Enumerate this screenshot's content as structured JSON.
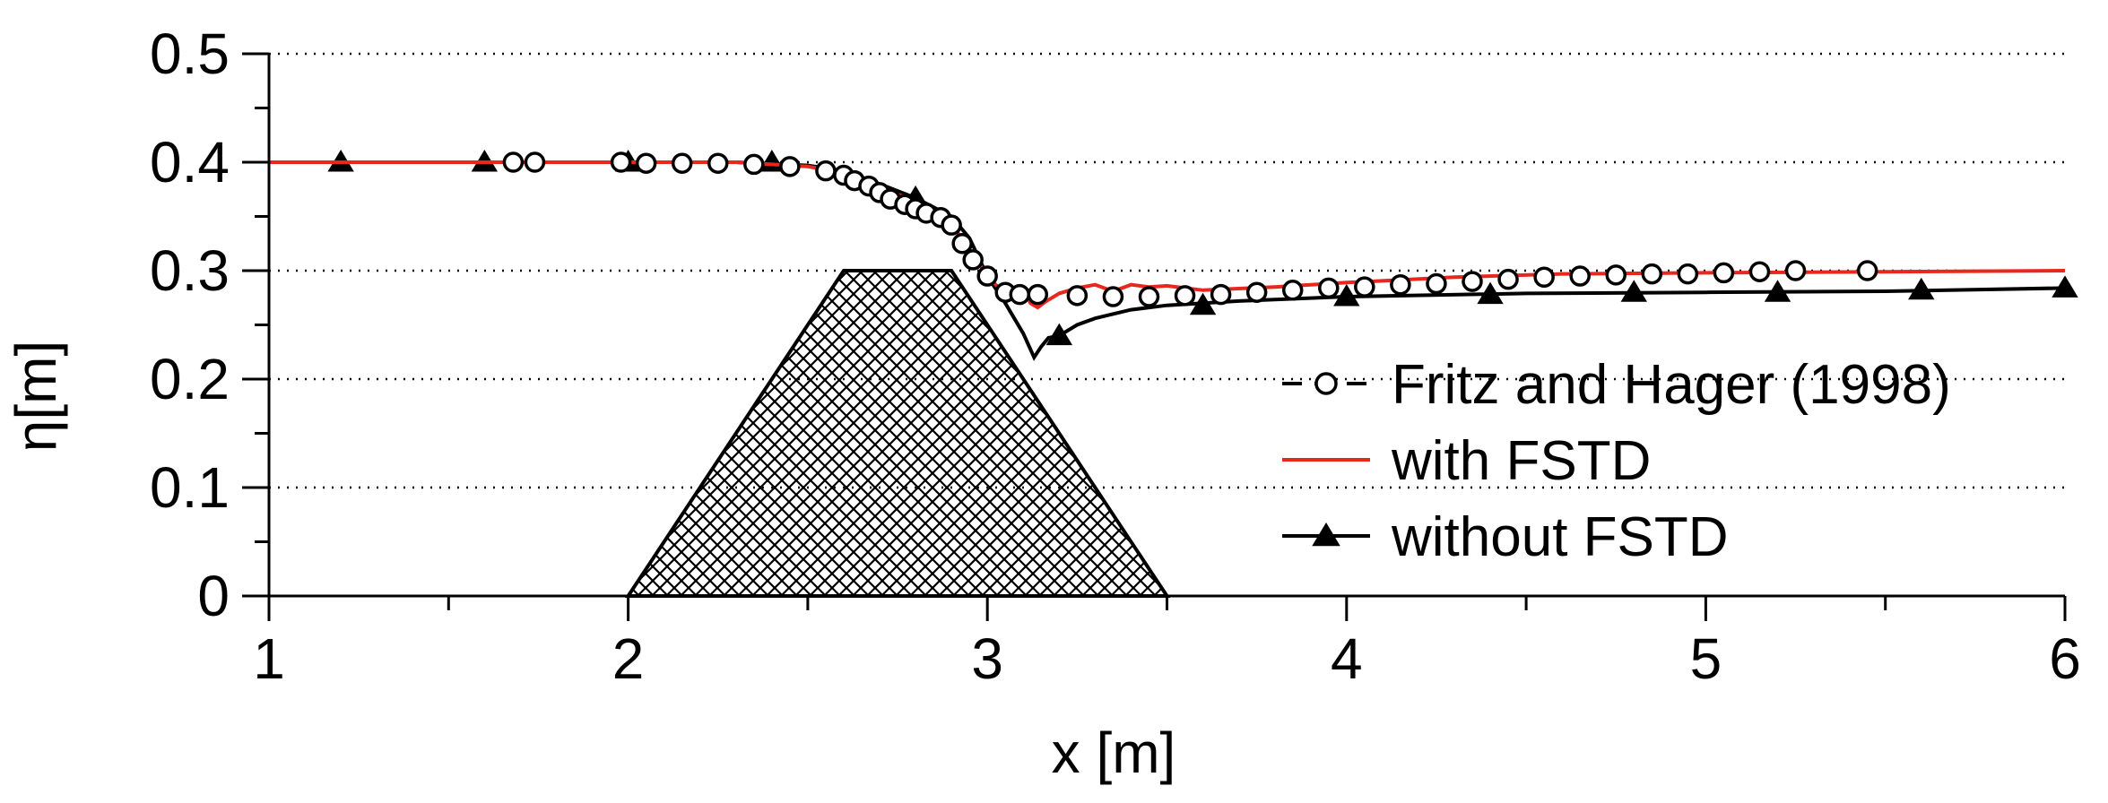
{
  "chart_data": {
    "type": "line",
    "xlabel": "x [m]",
    "ylabel": "η[m]",
    "xlim": [
      1,
      6
    ],
    "ylim": [
      0,
      0.5
    ],
    "x_ticks": [
      1,
      2,
      3,
      4,
      5,
      6
    ],
    "y_ticks": [
      0,
      0.1,
      0.2,
      0.3,
      0.4,
      0.5
    ],
    "x_tick_labels": [
      "1",
      "2",
      "3",
      "4",
      "5",
      "6"
    ],
    "y_tick_labels": [
      "0",
      "0.1",
      "0.2",
      "0.3",
      "0.4",
      "0.5"
    ],
    "grid": "horizontal dotted",
    "legend_position": "right",
    "obstacle": {
      "shape": "trapezoid",
      "fill": "crosshatch",
      "points": [
        [
          2.0,
          0.0
        ],
        [
          2.6,
          0.3
        ],
        [
          2.9,
          0.3
        ],
        [
          3.5,
          0.0
        ]
      ]
    },
    "series": [
      {
        "name": "Fritz and Hager (1998)",
        "style": "open-circle-markers",
        "color": "#000000",
        "x": [
          1.68,
          1.74,
          1.98,
          2.05,
          2.15,
          2.25,
          2.35,
          2.45,
          2.55,
          2.6,
          2.63,
          2.67,
          2.7,
          2.73,
          2.77,
          2.8,
          2.83,
          2.87,
          2.9,
          2.93,
          2.96,
          3.0,
          3.05,
          3.09,
          3.14,
          3.25,
          3.35,
          3.45,
          3.55,
          3.65,
          3.75,
          3.85,
          3.95,
          4.05,
          4.15,
          4.25,
          4.35,
          4.45,
          4.55,
          4.65,
          4.75,
          4.85,
          4.95,
          5.05,
          5.15,
          5.25,
          5.45
        ],
        "values": [
          0.4,
          0.4,
          0.4,
          0.399,
          0.399,
          0.399,
          0.398,
          0.396,
          0.392,
          0.388,
          0.383,
          0.378,
          0.372,
          0.366,
          0.361,
          0.357,
          0.353,
          0.349,
          0.342,
          0.325,
          0.31,
          0.295,
          0.28,
          0.278,
          0.278,
          0.277,
          0.276,
          0.276,
          0.277,
          0.278,
          0.28,
          0.282,
          0.284,
          0.285,
          0.287,
          0.288,
          0.29,
          0.292,
          0.294,
          0.295,
          0.296,
          0.297,
          0.297,
          0.298,
          0.299,
          0.3,
          0.3
        ]
      },
      {
        "name": "with FSTD",
        "style": "line",
        "color": "#e8281e",
        "x": [
          1.0,
          2.3,
          2.5,
          2.6,
          2.7,
          2.8,
          2.85,
          2.9,
          2.95,
          3.0,
          3.05,
          3.08,
          3.1,
          3.12,
          3.14,
          3.16,
          3.2,
          3.25,
          3.3,
          3.35,
          3.4,
          3.45,
          3.5,
          3.6,
          3.8,
          4.0,
          4.3,
          4.6,
          5.0,
          5.5,
          6.0
        ],
        "values": [
          0.4,
          0.4,
          0.396,
          0.39,
          0.377,
          0.364,
          0.355,
          0.343,
          0.32,
          0.295,
          0.278,
          0.272,
          0.283,
          0.27,
          0.266,
          0.271,
          0.279,
          0.284,
          0.287,
          0.281,
          0.287,
          0.285,
          0.286,
          0.282,
          0.285,
          0.289,
          0.294,
          0.297,
          0.298,
          0.299,
          0.3
        ]
      },
      {
        "name": "without FSTD",
        "style": "line-with-filled-triangles",
        "color": "#000000",
        "x": [
          1.0,
          2.3,
          2.5,
          2.6,
          2.7,
          2.8,
          2.9,
          2.95,
          3.0,
          3.05,
          3.1,
          3.13,
          3.15,
          3.17,
          3.2,
          3.25,
          3.3,
          3.4,
          3.5,
          3.7,
          4.0,
          4.5,
          5.0,
          5.5,
          6.0
        ],
        "values": [
          0.4,
          0.4,
          0.397,
          0.392,
          0.38,
          0.367,
          0.35,
          0.33,
          0.295,
          0.27,
          0.242,
          0.22,
          0.23,
          0.238,
          0.24,
          0.25,
          0.256,
          0.264,
          0.268,
          0.272,
          0.276,
          0.279,
          0.28,
          0.281,
          0.284
        ],
        "marker_x": [
          1.2,
          1.6,
          2.0,
          2.4,
          2.8,
          3.2,
          3.6,
          4.0,
          4.4,
          4.8,
          5.2,
          5.6,
          6.0
        ],
        "marker_values": [
          0.4,
          0.4,
          0.4,
          0.4,
          0.367,
          0.24,
          0.268,
          0.276,
          0.278,
          0.28,
          0.28,
          0.282,
          0.284
        ]
      }
    ]
  }
}
